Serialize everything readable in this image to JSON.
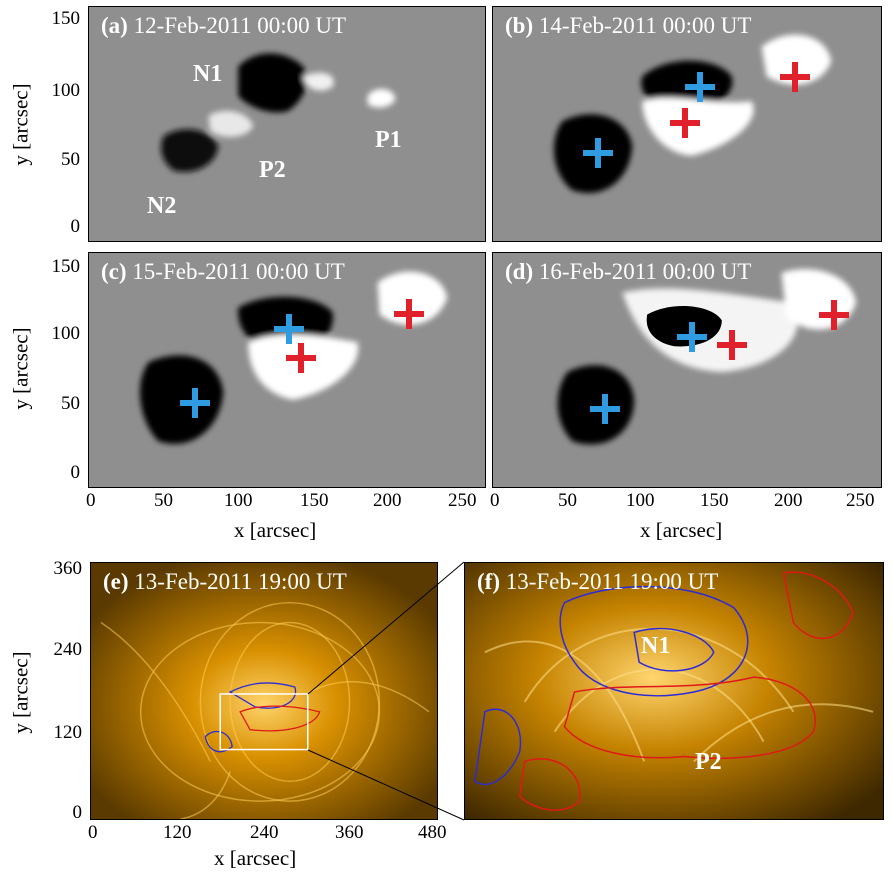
{
  "panels": {
    "a": {
      "tag": "(a)",
      "date": "12-Feb-2011 00:00 UT"
    },
    "b": {
      "tag": "(b)",
      "date": "14-Feb-2011 00:00 UT"
    },
    "c": {
      "tag": "(c)",
      "date": "15-Feb-2011 00:00 UT"
    },
    "d": {
      "tag": "(d)",
      "date": "16-Feb-2011 00:00 UT"
    },
    "e": {
      "tag": "(e)",
      "date": "13-Feb-2011 19:00 UT"
    },
    "f": {
      "tag": "(f)",
      "date": "13-Feb-2011 19:00 UT"
    }
  },
  "region_labels": {
    "n1": "N1",
    "n2": "N2",
    "p1": "P1",
    "p2": "P2"
  },
  "axes": {
    "xlabel": "x [arcsec]",
    "ylabel": "y [arcsec]",
    "mag_y_ticks": [
      "150",
      "100",
      "50",
      "0"
    ],
    "mag_x_ticks": [
      "0",
      "50",
      "100",
      "150",
      "200",
      "250"
    ],
    "aia_y_ticks": [
      "360",
      "240",
      "120",
      "0"
    ],
    "aia_x_ticks": [
      "0",
      "120",
      "240",
      "360",
      "480"
    ]
  },
  "colors": {
    "negative_center_marker": "#2f9be0",
    "positive_center_marker": "#e0202a",
    "contour_negative": "#2b2bd8",
    "contour_positive": "#e01818",
    "magnetogram_background": "#8f8f8f",
    "aia_171_tint": "#e8a000"
  },
  "markers": {
    "b": {
      "blue": [
        [
          130,
          98
        ],
        [
          68,
          55
        ]
      ],
      "red": [
        [
          193,
          105
        ],
        [
          118,
          74
        ]
      ]
    },
    "c": {
      "blue": [
        [
          127,
          101
        ],
        [
          69,
          52
        ]
      ],
      "red": [
        [
          205,
          111
        ],
        [
          136,
          81
        ]
      ]
    },
    "d": {
      "blue": [
        [
          127,
          96
        ],
        [
          72,
          48
        ]
      ],
      "red": [
        [
          218,
          112
        ],
        [
          150,
          90
        ]
      ]
    }
  },
  "zoom_box_e": {
    "x": [
      180,
      300
    ],
    "y": [
      90,
      180
    ]
  }
}
